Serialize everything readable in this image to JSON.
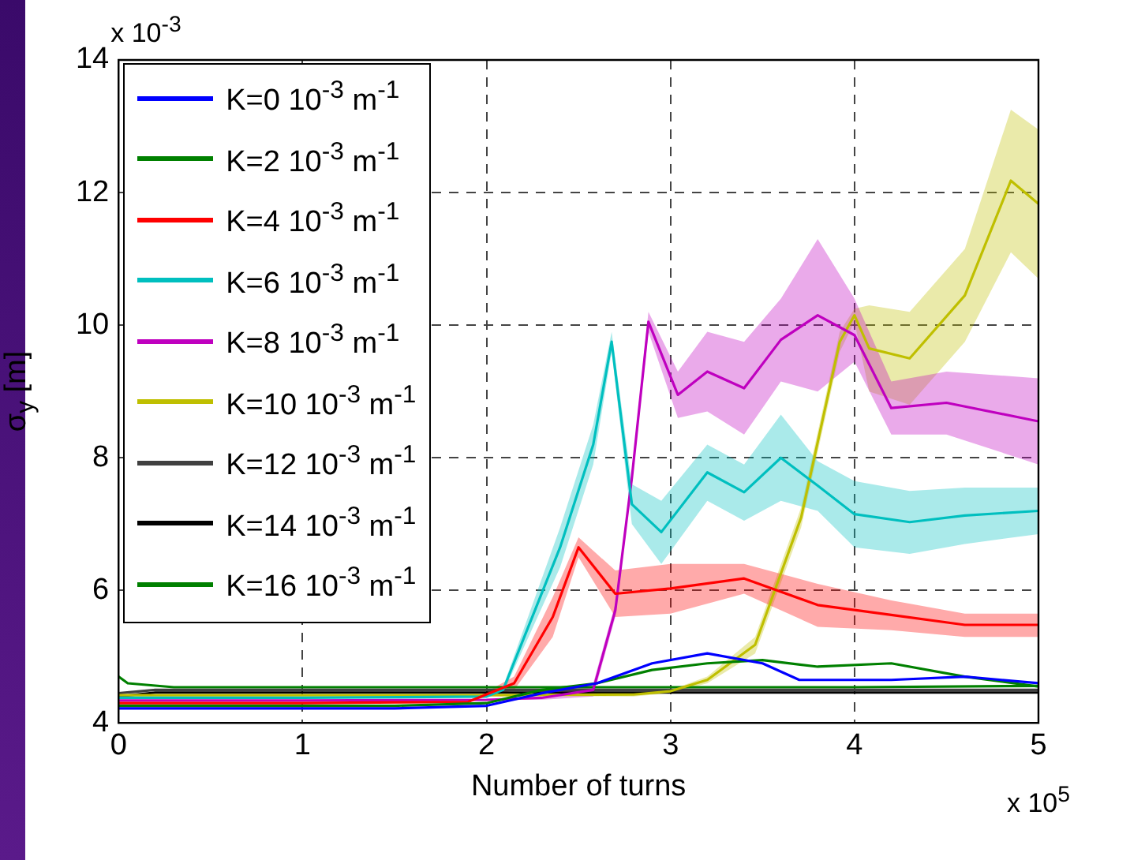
{
  "chart_data": {
    "type": "line",
    "xlabel": "Number of turns",
    "ylabel": "σ$_{y}$ [m]",
    "annotations": [
      "x 10$^{-3}$",
      "x 10$^{5}$"
    ],
    "xlim": [
      0,
      5
    ],
    "xticks": [
      0,
      1,
      2,
      3,
      4,
      5
    ],
    "ylim": [
      4,
      14
    ],
    "yticks": [
      4,
      6,
      8,
      10,
      12,
      14
    ],
    "grid": true,
    "legend": "top left",
    "marker": "none",
    "line_style": "solid",
    "series": [
      {
        "name": "K=0 10$^{-3}$ m$^{-1}$",
        "color": "#0000ff",
        "x": [
          0,
          0.5,
          1,
          1.5,
          2,
          2.3,
          2.6,
          2.9,
          3.2,
          3.5,
          3.7,
          4.0,
          4.2,
          4.6,
          5
        ],
        "values": [
          4.22,
          4.22,
          4.22,
          4.22,
          4.26,
          4.45,
          4.6,
          4.9,
          5.05,
          4.9,
          4.65,
          4.65,
          4.65,
          4.7,
          4.6
        ]
      },
      {
        "name": "K=2 10$^{-3}$ m$^{-1}$",
        "color": "#008000",
        "x": [
          0,
          0.5,
          1,
          1.5,
          2,
          2.3,
          2.6,
          2.9,
          3.2,
          3.5,
          3.8,
          4.2,
          4.6,
          5
        ],
        "values": [
          4.26,
          4.26,
          4.26,
          4.26,
          4.3,
          4.5,
          4.6,
          4.8,
          4.9,
          4.95,
          4.85,
          4.9,
          4.7,
          4.55
        ]
      },
      {
        "name": "K=4 10$^{-3}$ m$^{-1}$",
        "color": "#ff0000",
        "x": [
          0,
          1,
          1.9,
          2.15,
          2.36,
          2.5,
          2.7,
          3,
          3.4,
          3.8,
          4.2,
          4.6,
          5
        ],
        "values": [
          4.3,
          4.3,
          4.32,
          4.6,
          5.6,
          6.65,
          5.95,
          6.03,
          6.18,
          5.78,
          5.63,
          5.48,
          5.48
        ],
        "upper": [
          4.3,
          4.3,
          4.32,
          4.7,
          5.9,
          6.8,
          6.3,
          6.4,
          6.4,
          6.1,
          5.85,
          5.65,
          5.65
        ],
        "lower": [
          4.3,
          4.3,
          4.32,
          4.5,
          5.3,
          6.5,
          5.6,
          5.65,
          5.95,
          5.45,
          5.4,
          5.3,
          5.3
        ]
      },
      {
        "name": "K=6 10$^{-3}$ m$^{-1}$",
        "color": "#00bfbf",
        "x": [
          0,
          1,
          2,
          2.09,
          2.4,
          2.58,
          2.68,
          2.79,
          2.95,
          3.2,
          3.4,
          3.6,
          3.8,
          4.0,
          4.3,
          4.6,
          5
        ],
        "values": [
          4.38,
          4.38,
          4.4,
          4.5,
          6.65,
          8.2,
          9.75,
          7.3,
          6.88,
          7.78,
          7.48,
          8.0,
          7.58,
          7.15,
          7.03,
          7.13,
          7.2
        ],
        "upper": [
          4.38,
          4.38,
          4.4,
          4.55,
          6.95,
          8.5,
          9.9,
          7.6,
          7.35,
          8.2,
          7.9,
          8.65,
          7.95,
          7.65,
          7.5,
          7.55,
          7.55
        ],
        "lower": [
          4.38,
          4.38,
          4.4,
          4.45,
          6.35,
          7.9,
          9.6,
          7.0,
          6.4,
          7.35,
          7.05,
          7.35,
          7.2,
          6.65,
          6.55,
          6.7,
          6.85
        ]
      },
      {
        "name": "K=8 10$^{-3}$ m$^{-1}$",
        "color": "#bf00bf",
        "x": [
          0,
          1,
          2,
          2.3,
          2.58,
          2.7,
          2.79,
          2.88,
          3.04,
          3.2,
          3.4,
          3.6,
          3.8,
          4.0,
          4.2,
          4.5,
          5
        ],
        "values": [
          4.34,
          4.34,
          4.35,
          4.38,
          4.5,
          5.7,
          7.7,
          10.05,
          8.95,
          9.3,
          9.05,
          9.78,
          10.15,
          9.85,
          8.75,
          8.83,
          8.55
        ],
        "upper": [
          4.34,
          4.34,
          4.35,
          4.4,
          4.6,
          5.8,
          7.8,
          10.2,
          9.3,
          9.9,
          9.75,
          10.4,
          11.3,
          10.4,
          9.15,
          9.3,
          9.2
        ],
        "lower": [
          4.34,
          4.34,
          4.35,
          4.35,
          4.4,
          5.6,
          7.6,
          9.9,
          8.6,
          8.7,
          8.35,
          9.15,
          9.0,
          9.45,
          8.35,
          8.35,
          7.9
        ]
      },
      {
        "name": "K=10 10$^{-3}$ m$^{-1}$",
        "color": "#bfbf00",
        "x": [
          0,
          1,
          2,
          2.8,
          3.0,
          3.2,
          3.46,
          3.71,
          3.92,
          4.0,
          4.08,
          4.3,
          4.6,
          4.85,
          5
        ],
        "values": [
          4.42,
          4.42,
          4.42,
          4.43,
          4.48,
          4.65,
          5.18,
          7.1,
          9.75,
          10.15,
          9.65,
          9.5,
          10.45,
          12.18,
          11.83
        ],
        "upper": [
          4.42,
          4.42,
          4.42,
          4.45,
          4.5,
          4.7,
          5.3,
          7.25,
          9.9,
          10.25,
          10.3,
          10.2,
          11.15,
          13.25,
          12.95
        ],
        "lower": [
          4.42,
          4.42,
          4.42,
          4.4,
          4.45,
          4.6,
          5.05,
          6.95,
          9.6,
          10.05,
          9.0,
          8.8,
          9.75,
          11.1,
          10.7
        ]
      },
      {
        "name": "K=12 10$^{-3}$ m$^{-1}$",
        "color": "#404040",
        "x": [
          0,
          0.2,
          1,
          2,
          3,
          4,
          5
        ],
        "values": [
          4.45,
          4.5,
          4.5,
          4.5,
          4.5,
          4.5,
          4.5
        ]
      },
      {
        "name": "K=14 10$^{-3}$ m$^{-1}$",
        "color": "#000000",
        "x": [
          0,
          0.2,
          1,
          2,
          3,
          4,
          5
        ],
        "values": [
          4.4,
          4.46,
          4.46,
          4.46,
          4.46,
          4.46,
          4.46
        ]
      },
      {
        "name": "K=16 10$^{-3}$ m$^{-1}$",
        "color": "#008000",
        "x": [
          0,
          0.05,
          0.3,
          1,
          2,
          2.5,
          3,
          4,
          5
        ],
        "values": [
          4.7,
          4.6,
          4.54,
          4.54,
          4.54,
          4.54,
          4.54,
          4.54,
          4.56
        ]
      }
    ]
  }
}
